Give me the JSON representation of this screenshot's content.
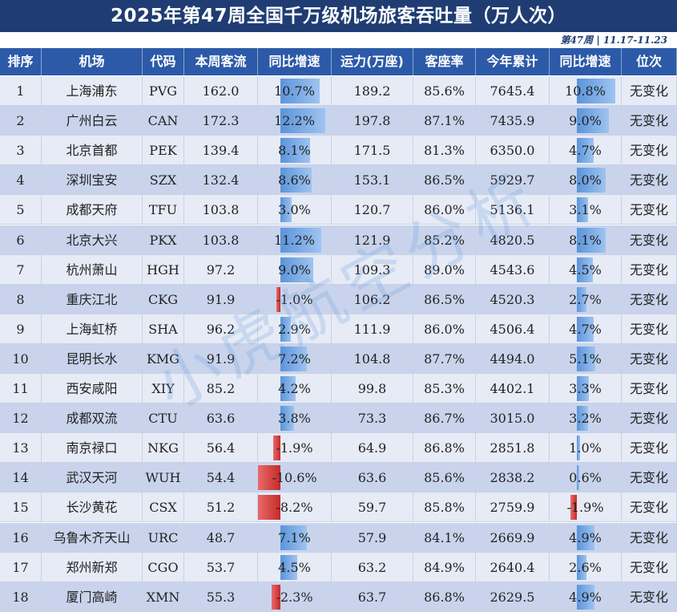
{
  "title": "2025年第47周全国千万级机场旅客吞吐量（万人次）",
  "subtitle": "第47周 | 11.17-11.23",
  "watermark": "小虎航空分析",
  "colors": {
    "header_bg": "#2c5aa8",
    "title_bg": "#1f3d73",
    "positive_bar": "#5b94da",
    "negative_bar": "#d33b3b"
  },
  "chart_data": {
    "type": "table",
    "columns": [
      "排序",
      "机场",
      "代码",
      "本周客流",
      "同比增速",
      "运力(万座)",
      "客座率",
      "今年累计",
      "同比增速",
      "位次"
    ],
    "rows": [
      [
        "1",
        "上海浦东",
        "PVG",
        "162.0",
        "10.7%",
        "189.2",
        "85.6%",
        "7645.4",
        "10.8%",
        "无变化"
      ],
      [
        "2",
        "广州白云",
        "CAN",
        "172.3",
        "12.2%",
        "197.8",
        "87.1%",
        "7435.9",
        "9.0%",
        "无变化"
      ],
      [
        "3",
        "北京首都",
        "PEK",
        "139.4",
        "8.1%",
        "171.5",
        "81.3%",
        "6350.0",
        "4.7%",
        "无变化"
      ],
      [
        "4",
        "深圳宝安",
        "SZX",
        "132.4",
        "8.6%",
        "153.1",
        "86.5%",
        "5929.7",
        "8.0%",
        "无变化"
      ],
      [
        "5",
        "成都天府",
        "TFU",
        "103.8",
        "3.0%",
        "120.7",
        "86.0%",
        "5136.1",
        "3.1%",
        "无变化"
      ],
      [
        "6",
        "北京大兴",
        "PKX",
        "103.8",
        "11.2%",
        "121.9",
        "85.2%",
        "4820.5",
        "8.1%",
        "无变化"
      ],
      [
        "7",
        "杭州萧山",
        "HGH",
        "97.2",
        "9.0%",
        "109.3",
        "89.0%",
        "4543.6",
        "4.5%",
        "无变化"
      ],
      [
        "8",
        "重庆江北",
        "CKG",
        "91.9",
        "-1.0%",
        "106.2",
        "86.5%",
        "4520.3",
        "2.7%",
        "无变化"
      ],
      [
        "9",
        "上海虹桥",
        "SHA",
        "96.2",
        "2.9%",
        "111.9",
        "86.0%",
        "4506.4",
        "4.7%",
        "无变化"
      ],
      [
        "10",
        "昆明长水",
        "KMG",
        "91.9",
        "7.2%",
        "104.8",
        "87.7%",
        "4494.0",
        "5.1%",
        "无变化"
      ],
      [
        "11",
        "西安咸阳",
        "XIY",
        "85.2",
        "4.2%",
        "99.8",
        "85.3%",
        "4402.1",
        "3.3%",
        "无变化"
      ],
      [
        "12",
        "成都双流",
        "CTU",
        "63.6",
        "3.8%",
        "73.3",
        "86.7%",
        "3015.0",
        "3.2%",
        "无变化"
      ],
      [
        "13",
        "南京禄口",
        "NKG",
        "56.4",
        "-1.9%",
        "64.9",
        "86.8%",
        "2851.8",
        "1.0%",
        "无变化"
      ],
      [
        "14",
        "武汉天河",
        "WUH",
        "54.4",
        "-10.6%",
        "63.6",
        "85.6%",
        "2838.2",
        "0.6%",
        "无变化"
      ],
      [
        "15",
        "长沙黄花",
        "CSX",
        "51.2",
        "-8.2%",
        "59.7",
        "85.8%",
        "2759.9",
        "-1.9%",
        "无变化"
      ],
      [
        "16",
        "乌鲁木齐天山",
        "URC",
        "48.7",
        "7.1%",
        "57.9",
        "84.1%",
        "2669.9",
        "4.9%",
        "无变化"
      ],
      [
        "17",
        "郑州新郑",
        "CGO",
        "53.7",
        "4.5%",
        "63.2",
        "84.9%",
        "2640.4",
        "2.6%",
        "无变化"
      ],
      [
        "18",
        "厦门高崎",
        "XMN",
        "55.3",
        "-2.3%",
        "63.7",
        "86.8%",
        "2629.5",
        "4.9%",
        "无变化"
      ]
    ],
    "bar_columns": [
      4,
      8
    ]
  }
}
